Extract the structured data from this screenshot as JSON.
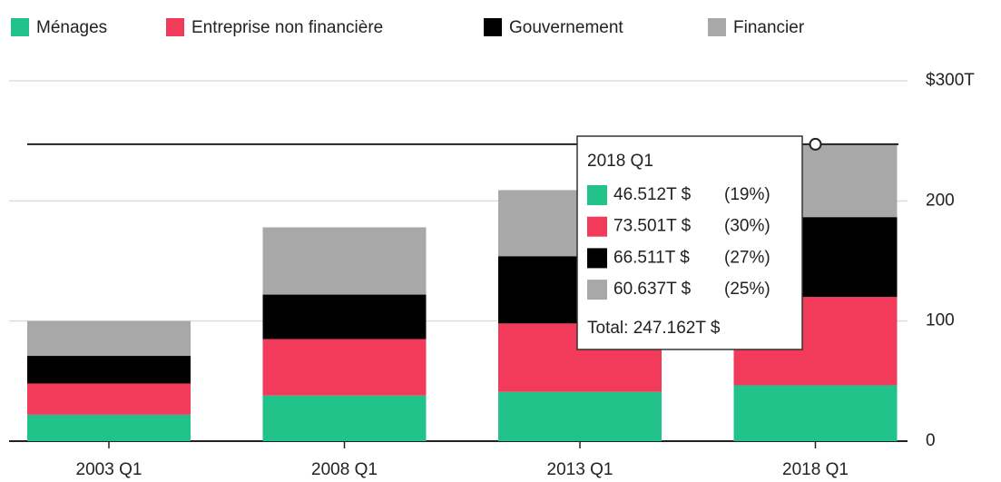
{
  "chart_data": {
    "type": "stacked_bar",
    "categories": [
      "2003 Q1",
      "2008 Q1",
      "2013 Q1",
      "2018 Q1"
    ],
    "series": [
      {
        "name": "Ménages",
        "color": "#22c38b",
        "values": [
          22,
          38,
          41,
          46.512
        ]
      },
      {
        "name": "Entreprise non financière",
        "color": "#f23a5a",
        "values": [
          26,
          47,
          57,
          73.501
        ]
      },
      {
        "name": "Gouvernement",
        "color": "#000000",
        "values": [
          23,
          37,
          56,
          66.511
        ]
      },
      {
        "name": "Financier",
        "color": "#a8a8a8",
        "values": [
          29,
          56,
          55,
          60.637
        ]
      }
    ],
    "ylim": [
      0,
      300
    ],
    "yticks": [
      0,
      100,
      200,
      {
        "value": 300,
        "label": "$300T"
      }
    ],
    "grid": true,
    "tooltip": {
      "title": "2018 Q1",
      "items": [
        {
          "label": "46.512T $",
          "share": "(19%)"
        },
        {
          "label": "73.501T $",
          "share": "(30%)"
        },
        {
          "label": "66.511T $",
          "share": "(27%)"
        },
        {
          "label": "60.637T $",
          "share": "(25%)"
        }
      ],
      "total": "Total: 247.162T $"
    }
  }
}
